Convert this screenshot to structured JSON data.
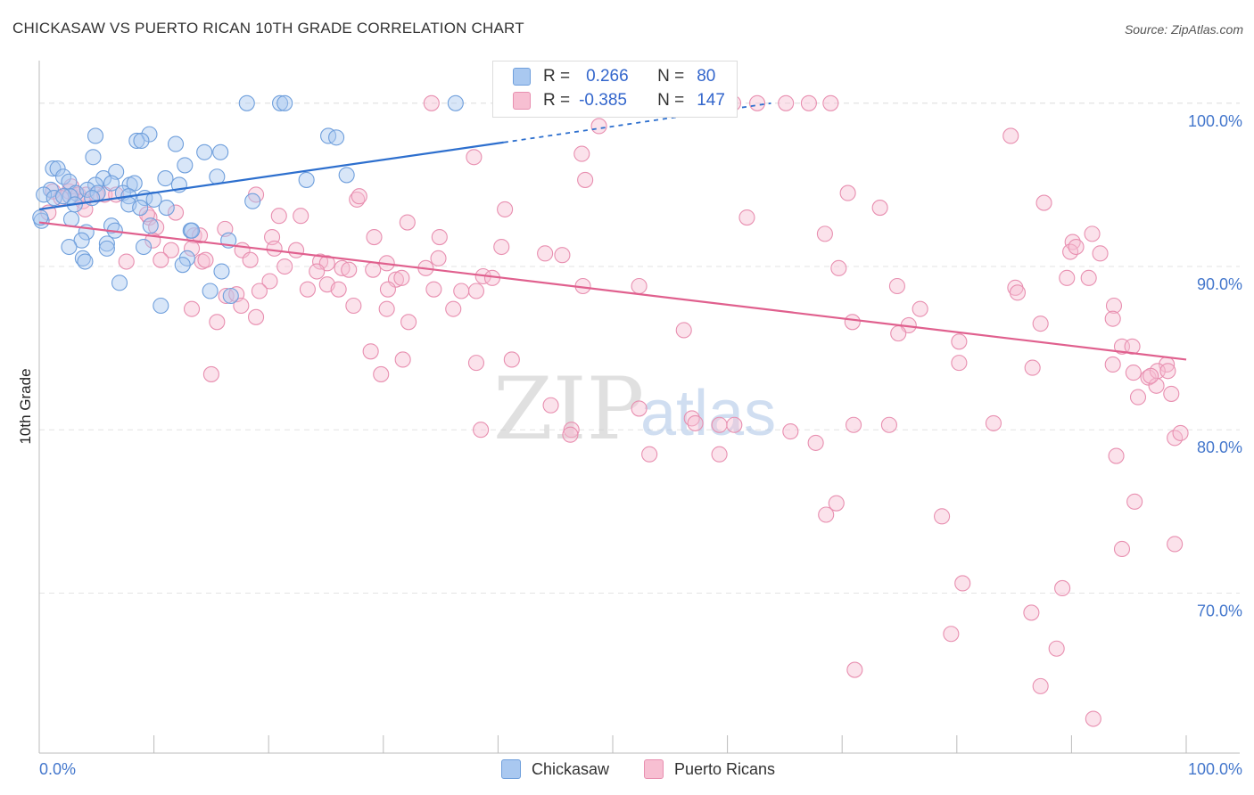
{
  "title": "CHICKASAW VS PUERTO RICAN 10TH GRADE CORRELATION CHART",
  "source": "Source: ZipAtlas.com",
  "watermark": {
    "zip": "ZIP",
    "atlas": "atlas"
  },
  "colors": {
    "chickasaw_fill": "#a9c8f0",
    "chickasaw_stroke": "#6f9fdc",
    "chickasaw_line": "#2d6fce",
    "pr_fill": "#f7bfd2",
    "pr_stroke": "#e88fb0",
    "pr_line": "#e0608e",
    "grid": "#e3e3e3",
    "axis_label": "#4477cc"
  },
  "legend": {
    "chickasaw": {
      "r_label": "R =",
      "r_value": "0.266",
      "n_label": "N =",
      "n_value": "80"
    },
    "puerto_ricans": {
      "r_label": "R =",
      "r_value": "-0.385",
      "n_label": "N =",
      "n_value": "147"
    }
  },
  "chart_data": {
    "type": "scatter",
    "title": "CHICKASAW VS PUERTO RICAN 10TH GRADE CORRELATION CHART",
    "xlabel": "",
    "ylabel": "10th Grade",
    "xlim": [
      0,
      100
    ],
    "ylim": [
      60.2,
      102.5
    ],
    "x_tick_labels": [
      "0.0%",
      "100.0%"
    ],
    "y_ticks": [
      100,
      90,
      80,
      70
    ],
    "y_tick_labels": [
      "100.0%",
      "90.0%",
      "80.0%",
      "70.0%"
    ],
    "grid": true,
    "legend_position": "bottom-center",
    "series": [
      {
        "name": "Chickasaw",
        "trend": {
          "x": [
            0,
            40.5
          ],
          "y": [
            93.5,
            97.6
          ]
        },
        "trend_dashed": {
          "x": [
            40.5,
            63.8
          ],
          "y": [
            97.6,
            100
          ]
        },
        "points": [
          [
            18.1,
            100
          ],
          [
            21,
            100
          ],
          [
            21.4,
            100
          ],
          [
            36.3,
            100
          ],
          [
            4.9,
            98
          ],
          [
            9.6,
            98.1
          ],
          [
            8.5,
            97.7
          ],
          [
            8.9,
            97.7
          ],
          [
            11.9,
            97.5
          ],
          [
            14.4,
            97
          ],
          [
            15.8,
            97
          ],
          [
            25.2,
            98
          ],
          [
            25.9,
            97.9
          ],
          [
            4.7,
            96.7
          ],
          [
            1.2,
            96
          ],
          [
            1.6,
            96
          ],
          [
            12.7,
            96.2
          ],
          [
            26.8,
            95.6
          ],
          [
            6.7,
            95.8
          ],
          [
            2.1,
            95.5
          ],
          [
            5.6,
            95.4
          ],
          [
            6.3,
            95.1
          ],
          [
            11,
            95.4
          ],
          [
            15.5,
            95.5
          ],
          [
            23.3,
            95.3
          ],
          [
            2.6,
            95.2
          ],
          [
            4.9,
            95
          ],
          [
            7.9,
            95
          ],
          [
            8.3,
            95.1
          ],
          [
            12.2,
            95
          ],
          [
            1,
            94.7
          ],
          [
            3.2,
            94.5
          ],
          [
            4.2,
            94.7
          ],
          [
            5.1,
            94.5
          ],
          [
            7.3,
            94.5
          ],
          [
            2.7,
            94.3
          ],
          [
            0.4,
            94.4
          ],
          [
            1.3,
            94.2
          ],
          [
            2.1,
            94.3
          ],
          [
            4.6,
            94.2
          ],
          [
            7.8,
            94.3
          ],
          [
            9.2,
            94.2
          ],
          [
            10,
            94.1
          ],
          [
            18.6,
            94
          ],
          [
            3.1,
            93.8
          ],
          [
            7.8,
            93.8
          ],
          [
            8.8,
            93.6
          ],
          [
            11.1,
            93.6
          ],
          [
            0.2,
            92.8
          ],
          [
            2.8,
            92.9
          ],
          [
            6.3,
            92.5
          ],
          [
            9.7,
            92.5
          ],
          [
            4.1,
            92.1
          ],
          [
            6.6,
            92.2
          ],
          [
            13.2,
            92.2
          ],
          [
            13.3,
            92.2
          ],
          [
            3.7,
            91.6
          ],
          [
            5.9,
            91.4
          ],
          [
            16.5,
            91.6
          ],
          [
            2.6,
            91.2
          ],
          [
            5.9,
            91.1
          ],
          [
            9.1,
            91.2
          ],
          [
            3.8,
            90.5
          ],
          [
            4,
            90.3
          ],
          [
            12.9,
            90.5
          ],
          [
            12.5,
            90.1
          ],
          [
            15.9,
            89.7
          ],
          [
            7,
            89
          ],
          [
            14.9,
            88.5
          ],
          [
            16.7,
            88.2
          ],
          [
            10.6,
            87.6
          ],
          [
            0.1,
            93
          ]
        ]
      },
      {
        "name": "Puerto Ricans",
        "trend": {
          "x": [
            0,
            100
          ],
          "y": [
            92.7,
            84.3
          ]
        },
        "points": [
          [
            34.2,
            100
          ],
          [
            47.4,
            100
          ],
          [
            50,
            100
          ],
          [
            60.5,
            100
          ],
          [
            62.6,
            100
          ],
          [
            65.1,
            100
          ],
          [
            67.1,
            100
          ],
          [
            69,
            100
          ],
          [
            48.8,
            98.6
          ],
          [
            84.7,
            98
          ],
          [
            37.9,
            96.7
          ],
          [
            47.3,
            96.9
          ],
          [
            47.6,
            95.3
          ],
          [
            1.2,
            94.6
          ],
          [
            2.6,
            94.6
          ],
          [
            2.8,
            94.9
          ],
          [
            3.4,
            94.4
          ],
          [
            4.1,
            94.4
          ],
          [
            5,
            94.4
          ],
          [
            5.7,
            94.4
          ],
          [
            6.7,
            94.4
          ],
          [
            1.9,
            94.2
          ],
          [
            0.8,
            93.3
          ],
          [
            3.8,
            94
          ],
          [
            18.9,
            94.4
          ],
          [
            27.7,
            94.1
          ],
          [
            27.9,
            94.3
          ],
          [
            70.5,
            94.5
          ],
          [
            73.3,
            93.6
          ],
          [
            87.6,
            93.9
          ],
          [
            4,
            93.5
          ],
          [
            9.6,
            93
          ],
          [
            9.4,
            93.2
          ],
          [
            11.9,
            93.3
          ],
          [
            20.9,
            93.1
          ],
          [
            22.8,
            93.1
          ],
          [
            32.1,
            92.7
          ],
          [
            40.6,
            93.5
          ],
          [
            61.7,
            93
          ],
          [
            10.2,
            92.4
          ],
          [
            13.5,
            91.9
          ],
          [
            14,
            91.9
          ],
          [
            16.2,
            92.3
          ],
          [
            20.3,
            91.8
          ],
          [
            29.2,
            91.8
          ],
          [
            34.9,
            91.8
          ],
          [
            68.5,
            92
          ],
          [
            91.8,
            92
          ],
          [
            90.1,
            91.5
          ],
          [
            9.9,
            91.6
          ],
          [
            11.5,
            91
          ],
          [
            13.3,
            91.1
          ],
          [
            17.7,
            91
          ],
          [
            20.5,
            91.1
          ],
          [
            22.4,
            91
          ],
          [
            40.3,
            91.2
          ],
          [
            44.1,
            90.8
          ],
          [
            45.6,
            90.7
          ],
          [
            89.9,
            90.9
          ],
          [
            90.4,
            91.2
          ],
          [
            7.6,
            90.3
          ],
          [
            10.6,
            90.4
          ],
          [
            14.2,
            90.3
          ],
          [
            14.5,
            90.4
          ],
          [
            18.4,
            90.4
          ],
          [
            21.4,
            90
          ],
          [
            24.5,
            90.3
          ],
          [
            25.1,
            90.2
          ],
          [
            30.3,
            90.2
          ],
          [
            34.8,
            90.5
          ],
          [
            92.5,
            90.8
          ],
          [
            24.2,
            89.7
          ],
          [
            26.4,
            89.9
          ],
          [
            27,
            89.8
          ],
          [
            29.1,
            89.8
          ],
          [
            33.7,
            89.9
          ],
          [
            69.7,
            89.9
          ],
          [
            20.1,
            89.1
          ],
          [
            25.1,
            88.9
          ],
          [
            31.1,
            89.2
          ],
          [
            31.6,
            89.3
          ],
          [
            38.7,
            89.4
          ],
          [
            39.5,
            89.3
          ],
          [
            47.4,
            88.8
          ],
          [
            52.3,
            88.8
          ],
          [
            74.8,
            88.8
          ],
          [
            85.1,
            88.7
          ],
          [
            85.3,
            88.4
          ],
          [
            89.6,
            89.3
          ],
          [
            91.5,
            89.3
          ],
          [
            16.3,
            88.2
          ],
          [
            17.2,
            88.3
          ],
          [
            19.2,
            88.5
          ],
          [
            23.4,
            88.6
          ],
          [
            26.1,
            88.6
          ],
          [
            30.4,
            88.6
          ],
          [
            34.4,
            88.6
          ],
          [
            36.8,
            88.5
          ],
          [
            38.1,
            88.5
          ],
          [
            13.3,
            87.4
          ],
          [
            17.6,
            87.6
          ],
          [
            27.4,
            87.6
          ],
          [
            30.3,
            87.4
          ],
          [
            36.1,
            87.4
          ],
          [
            76.8,
            87.4
          ],
          [
            93.7,
            87.6
          ],
          [
            15.5,
            86.6
          ],
          [
            18.9,
            86.9
          ],
          [
            32.2,
            86.6
          ],
          [
            70.9,
            86.6
          ],
          [
            75.8,
            86.4
          ],
          [
            87.3,
            86.5
          ],
          [
            93.6,
            86.8
          ],
          [
            56.2,
            86.1
          ],
          [
            74.9,
            85.9
          ],
          [
            80.2,
            85.4
          ],
          [
            94.4,
            85.1
          ],
          [
            95.3,
            85.1
          ],
          [
            28.9,
            84.8
          ],
          [
            38.1,
            84.1
          ],
          [
            80.2,
            84.1
          ],
          [
            93.6,
            84
          ],
          [
            96.7,
            83.2
          ],
          [
            98.3,
            84
          ],
          [
            86.6,
            83.8
          ],
          [
            95.4,
            83.5
          ],
          [
            97.5,
            83.6
          ],
          [
            98.4,
            83.6
          ],
          [
            15,
            83.4
          ],
          [
            29.8,
            83.4
          ],
          [
            31.7,
            84.3
          ],
          [
            41.2,
            84.3
          ],
          [
            95.8,
            82
          ],
          [
            97.4,
            82.7
          ],
          [
            98.7,
            82.2
          ],
          [
            56.9,
            80.7
          ],
          [
            59.3,
            80.3
          ],
          [
            60.6,
            80.3
          ],
          [
            74.1,
            80.3
          ],
          [
            83.2,
            80.4
          ],
          [
            71,
            80.3
          ],
          [
            99,
            79.5
          ],
          [
            93.9,
            78.4
          ],
          [
            95.5,
            75.6
          ],
          [
            99,
            73
          ],
          [
            94.4,
            72.7
          ],
          [
            80.5,
            70.6
          ],
          [
            89.2,
            70.3
          ],
          [
            86.5,
            68.8
          ],
          [
            79.5,
            67.5
          ],
          [
            88.7,
            66.6
          ],
          [
            71.1,
            65.3
          ],
          [
            87.3,
            64.3
          ],
          [
            91.9,
            62.3
          ],
          [
            44.6,
            81.5
          ],
          [
            52.3,
            81.3
          ],
          [
            57.2,
            80.4
          ],
          [
            38.5,
            80
          ],
          [
            46.4,
            80
          ],
          [
            53.2,
            78.5
          ],
          [
            46.3,
            79.7
          ],
          [
            65.5,
            79.9
          ],
          [
            59.3,
            78.5
          ],
          [
            67.7,
            79.2
          ],
          [
            96.9,
            83.3
          ],
          [
            99.5,
            79.8
          ],
          [
            69.5,
            75.5
          ],
          [
            68.6,
            74.8
          ],
          [
            78.7,
            74.7
          ]
        ]
      }
    ]
  },
  "axis": {
    "x_min_label": "0.0%",
    "x_max_label": "100.0%",
    "y_title": "10th Grade"
  },
  "bottom_legend": {
    "chickasaw": "Chickasaw",
    "puerto_ricans": "Puerto Ricans"
  }
}
